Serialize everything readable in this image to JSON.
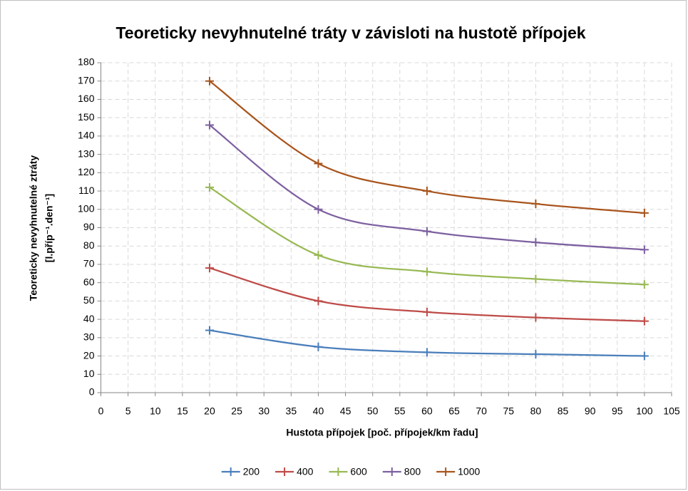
{
  "chart_data": {
    "type": "line",
    "title": "Teoreticky nevyhnutelné tráty v závisloti na hustotě přípojek",
    "xlabel": "Hustota přípojek [poč. přípojek/km řadu]",
    "ylabel": [
      "Teoreticky nevyhnutelné ztráty",
      "[l.příp⁻¹.den⁻¹]"
    ],
    "x": [
      20,
      40,
      60,
      80,
      100
    ],
    "series": [
      {
        "name": "200",
        "color": "#4a7ebb",
        "values": [
          34,
          25,
          22,
          21,
          20
        ]
      },
      {
        "name": "400",
        "color": "#be4b48",
        "values": [
          68,
          50,
          44,
          41,
          39
        ]
      },
      {
        "name": "600",
        "color": "#98b954",
        "values": [
          112,
          75,
          66,
          62,
          59
        ]
      },
      {
        "name": "800",
        "color": "#7d60a0",
        "values": [
          146,
          100,
          88,
          82,
          78
        ]
      },
      {
        "name": "1000",
        "color": "#a9541c",
        "values": [
          170,
          125,
          110,
          103,
          98
        ]
      }
    ],
    "xlim": [
      0,
      105
    ],
    "xticks": [
      0,
      5,
      10,
      15,
      20,
      25,
      30,
      35,
      40,
      45,
      50,
      55,
      60,
      65,
      70,
      75,
      80,
      85,
      90,
      95,
      100,
      105
    ],
    "ylim": [
      0,
      180
    ],
    "yticks": [
      0,
      10,
      20,
      30,
      40,
      50,
      60,
      70,
      80,
      90,
      100,
      110,
      120,
      130,
      140,
      150,
      160,
      170,
      180
    ],
    "grid": true,
    "smooth": true,
    "legend": "bottom"
  }
}
